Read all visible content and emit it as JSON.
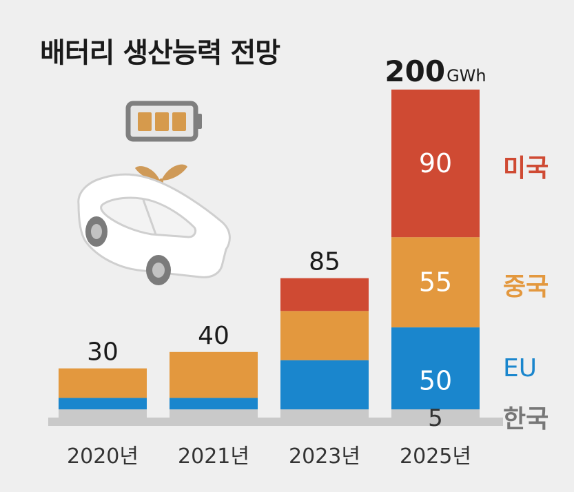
{
  "colors": {
    "background": "#efefef",
    "korea": "#c9c9c9",
    "eu": "#1a86cd",
    "china": "#e3983e",
    "usa": "#cf4a33",
    "text": "#1a1a1a",
    "label_white": "#ffffff"
  },
  "illustration": {
    "icons": [
      "battery-icon",
      "car-with-sprout-icon"
    ]
  },
  "chart_data": {
    "type": "bar",
    "stacked": true,
    "title": "배터리 생산능력 전망",
    "unit": "GWh",
    "categories": [
      "2020년",
      "2021년",
      "2023년",
      "2025년"
    ],
    "series": [
      {
        "name": "한국",
        "values": [
          5,
          5,
          5,
          5
        ]
      },
      {
        "name": "EU",
        "values": [
          7,
          7,
          30,
          50
        ]
      },
      {
        "name": "중국",
        "values": [
          18,
          28,
          30,
          55
        ]
      },
      {
        "name": "미국",
        "values": [
          0,
          0,
          20,
          90
        ]
      }
    ],
    "totals": [
      30,
      40,
      85,
      200
    ],
    "total_labels": [
      "30",
      "40",
      "85",
      "200"
    ],
    "segment_labels_2025": {
      "usa": "90",
      "china": "55",
      "eu": "50",
      "korea": "5"
    },
    "legend": [
      "미국",
      "중국",
      "EU",
      "한국"
    ],
    "ylim": [
      0,
      200
    ],
    "grid": false
  }
}
